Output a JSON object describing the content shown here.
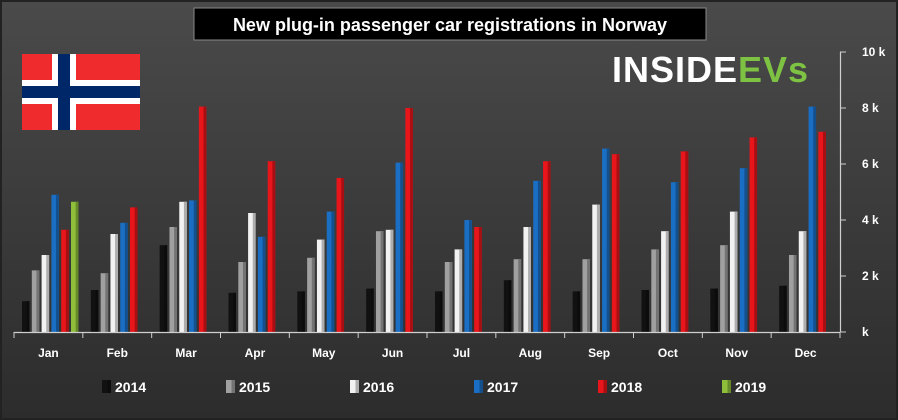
{
  "brand": {
    "inside": "INSIDE",
    "evs": "EVs",
    "inside_color": "#ffffff",
    "evs_color": "#7dc242"
  },
  "flag": {
    "red": "#ef2b2d",
    "white": "#ffffff",
    "blue": "#002868"
  },
  "chart_data": {
    "type": "bar",
    "title": "New plug-in passenger car registrations in Norway",
    "categories": [
      "Jan",
      "Feb",
      "Mar",
      "Apr",
      "May",
      "Jun",
      "Jul",
      "Aug",
      "Sep",
      "Oct",
      "Nov",
      "Dec"
    ],
    "ylim": [
      0,
      10000
    ],
    "ytick_values": [
      0,
      2000,
      4000,
      6000,
      8000,
      10000
    ],
    "ytick_labels": [
      "k",
      "2 k",
      "4 k",
      "6 k",
      "8 k",
      "10 k"
    ],
    "grid": false,
    "legend_position": "bottom",
    "series": [
      {
        "name": "2014",
        "color": "#111111",
        "values": [
          1100,
          1500,
          3100,
          1400,
          1450,
          1550,
          1450,
          1850,
          1450,
          1500,
          1550,
          1650
        ]
      },
      {
        "name": "2015",
        "color": "#a0a0a0",
        "values": [
          2200,
          2100,
          3750,
          2500,
          2650,
          3600,
          2500,
          2600,
          2600,
          2950,
          3100,
          2750
        ]
      },
      {
        "name": "2016",
        "color": "#f2f2f2",
        "values": [
          2750,
          3500,
          4650,
          4250,
          3300,
          3650,
          2950,
          3750,
          4550,
          3600,
          4300,
          3600
        ]
      },
      {
        "name": "2017",
        "color": "#1a6fc4",
        "values": [
          4900,
          3900,
          4700,
          3400,
          4300,
          6050,
          4000,
          5400,
          6550,
          5350,
          5850,
          8050
        ]
      },
      {
        "name": "2018",
        "color": "#e8151b",
        "values": [
          3650,
          4450,
          8050,
          6100,
          5500,
          8000,
          3750,
          6100,
          6350,
          6450,
          6950,
          7150
        ]
      },
      {
        "name": "2019",
        "color": "#8fbf3a",
        "values": [
          4650,
          null,
          null,
          null,
          null,
          null,
          null,
          null,
          null,
          null,
          null,
          null
        ]
      }
    ]
  }
}
